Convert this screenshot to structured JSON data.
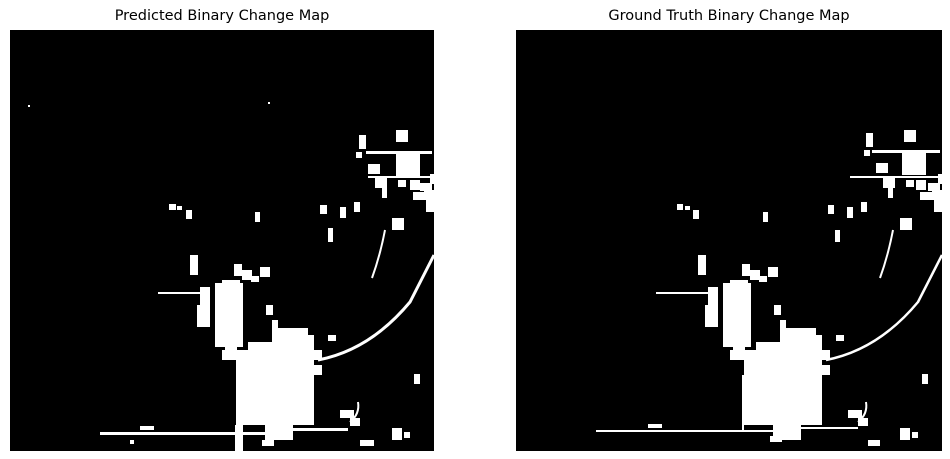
{
  "panels": [
    {
      "title": "Predicted Binary Change Map"
    },
    {
      "title": "Ground Truth Binary Change Map"
    }
  ],
  "colors": {
    "change": "#ffffff",
    "no_change": "#000000",
    "background": "#ffffff"
  }
}
